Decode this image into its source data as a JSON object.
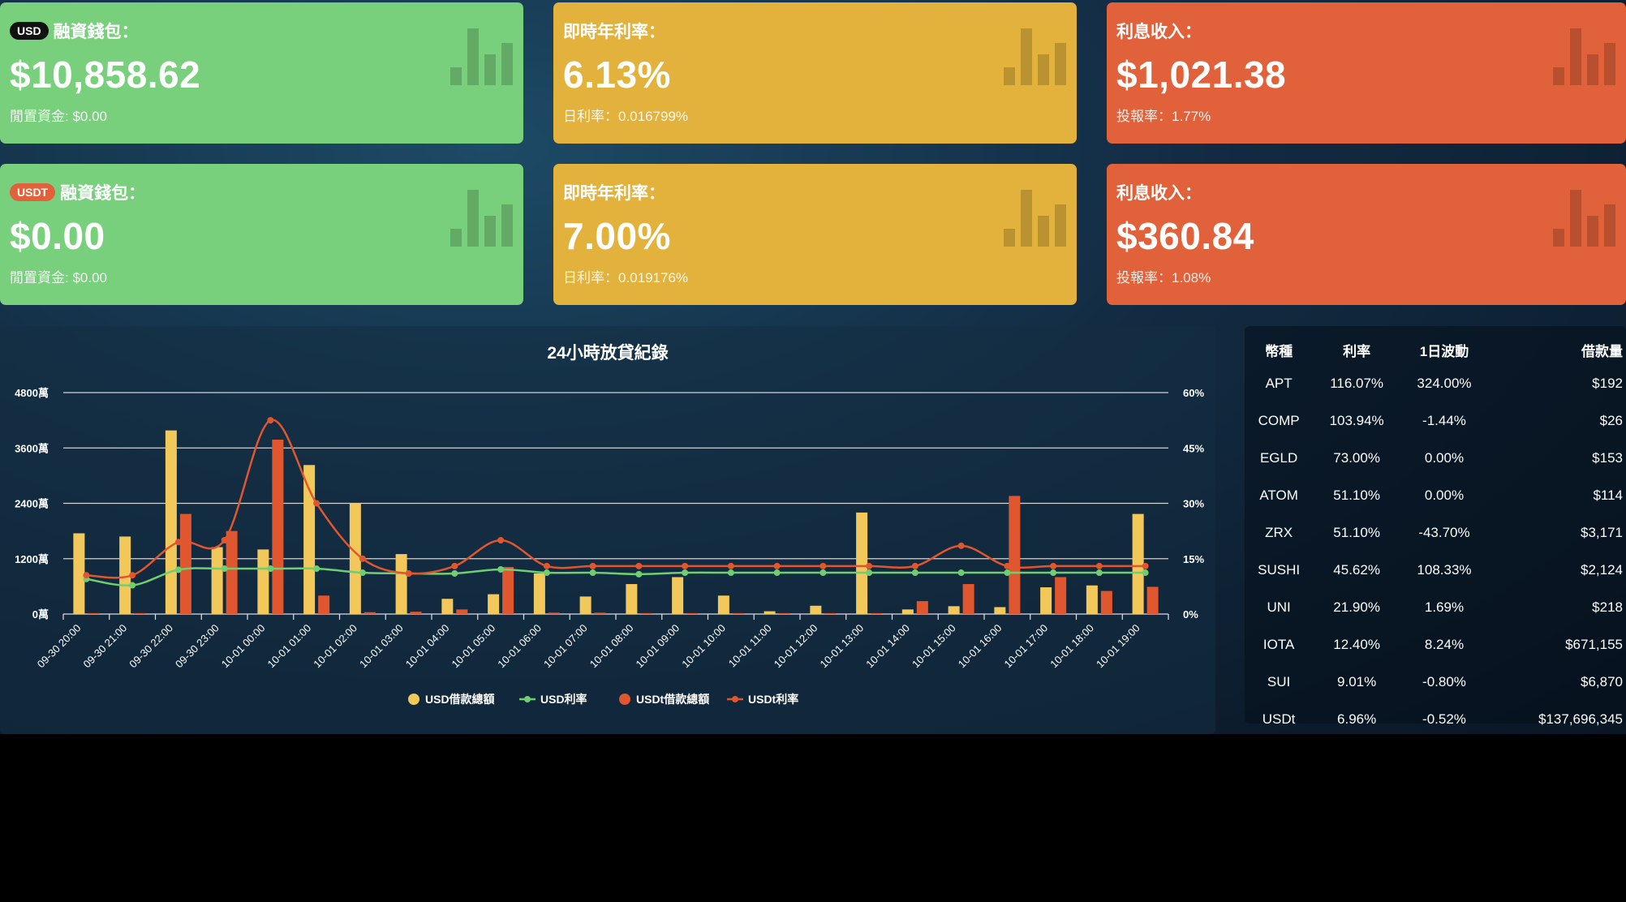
{
  "cards": [
    {
      "badge": "USD",
      "label": "融資錢包：",
      "value": "$10,858.62",
      "sub": "閒置資金: $0.00"
    },
    {
      "label": "即時年利率：",
      "value": "6.13%",
      "sub": "日利率：0.016799%"
    },
    {
      "label": "利息收入：",
      "value": "$1,021.38",
      "sub": "投報率：1.77%"
    },
    {
      "badge": "USDT",
      "label": "融資錢包：",
      "value": "$0.00",
      "sub": "閒置資金: $0.00"
    },
    {
      "label": "即時年利率：",
      "value": "7.00%",
      "sub": "日利率：0.019176%"
    },
    {
      "label": "利息收入：",
      "value": "$360.84",
      "sub": "投報率：1.08%"
    }
  ],
  "colors": {
    "green": "#78d07c",
    "yellow": "#e3b23c",
    "red": "#e1613a",
    "usd_bar": "#f2c85b",
    "usd_line": "#6fcf70",
    "usdt_bar": "#e0562e",
    "usdt_line": "#e0562e"
  },
  "chart_data": {
    "type": "bar",
    "title": "24小時放貸紀錄",
    "y_left_ticks": [
      "0萬",
      "1200萬",
      "2400萬",
      "3600萬",
      "4800萬"
    ],
    "y_right_ticks": [
      "0%",
      "15%",
      "30%",
      "45%",
      "60%"
    ],
    "ylim_left": [
      0,
      4800
    ],
    "ylim_right": [
      0,
      60
    ],
    "categories": [
      "09-30 20:00",
      "09-30 21:00",
      "09-30 22:00",
      "09-30 23:00",
      "10-01 00:00",
      "10-01 01:00",
      "10-01 02:00",
      "10-01 03:00",
      "10-01 04:00",
      "10-01 05:00",
      "10-01 06:00",
      "10-01 07:00",
      "10-01 08:00",
      "10-01 09:00",
      "10-01 10:00",
      "10-01 11:00",
      "10-01 12:00",
      "10-01 13:00",
      "10-01 14:00",
      "10-01 15:00",
      "10-01 16:00",
      "10-01 17:00",
      "10-01 18:00",
      "10-01 19:00"
    ],
    "series": [
      {
        "name": "USD借款總額",
        "kind": "bar",
        "axis": "left",
        "values": [
          1750,
          1680,
          3980,
          1450,
          1400,
          3230,
          2400,
          1300,
          330,
          430,
          880,
          380,
          650,
          800,
          400,
          60,
          180,
          2200,
          100,
          170,
          150,
          580,
          620,
          2170
        ]
      },
      {
        "name": "USD利率",
        "kind": "line",
        "axis": "right",
        "values": [
          9.5,
          7.8,
          12,
          12.3,
          12.3,
          12.3,
          11.2,
          11,
          11,
          12.1,
          11.2,
          11.2,
          10.8,
          11.2,
          11.2,
          11.2,
          11.2,
          11.2,
          11.2,
          11.2,
          11.2,
          11.2,
          11.2,
          11.2
        ]
      },
      {
        "name": "USDt借款總額",
        "kind": "bar",
        "axis": "left",
        "values": [
          20,
          20,
          2170,
          1800,
          3780,
          400,
          40,
          50,
          100,
          1020,
          30,
          30,
          20,
          20,
          20,
          20,
          20,
          20,
          280,
          650,
          2560,
          800,
          500,
          590
        ]
      },
      {
        "name": "USDt利率",
        "kind": "line",
        "axis": "right",
        "values": [
          10.5,
          10.5,
          19.5,
          20,
          52.5,
          30,
          15,
          11,
          13,
          20,
          13,
          13,
          13,
          13,
          13,
          13,
          13,
          13,
          13,
          18.5,
          13,
          13,
          13,
          13
        ]
      }
    ],
    "legend_position": "bottom"
  },
  "table": {
    "headers": [
      "幣種",
      "利率",
      "1日波動",
      "借款量"
    ],
    "rows": [
      [
        "APT",
        "116.07%",
        "324.00%",
        "$192"
      ],
      [
        "COMP",
        "103.94%",
        "-1.44%",
        "$26"
      ],
      [
        "EGLD",
        "73.00%",
        "0.00%",
        "$153"
      ],
      [
        "ATOM",
        "51.10%",
        "0.00%",
        "$114"
      ],
      [
        "ZRX",
        "51.10%",
        "-43.70%",
        "$3,171"
      ],
      [
        "SUSHI",
        "45.62%",
        "108.33%",
        "$2,124"
      ],
      [
        "UNI",
        "21.90%",
        "1.69%",
        "$218"
      ],
      [
        "IOTA",
        "12.40%",
        "8.24%",
        "$671,155"
      ],
      [
        "SUI",
        "9.01%",
        "-0.80%",
        "$6,870"
      ],
      [
        "USDt",
        "6.96%",
        "-0.52%",
        "$137,696,345"
      ]
    ]
  }
}
